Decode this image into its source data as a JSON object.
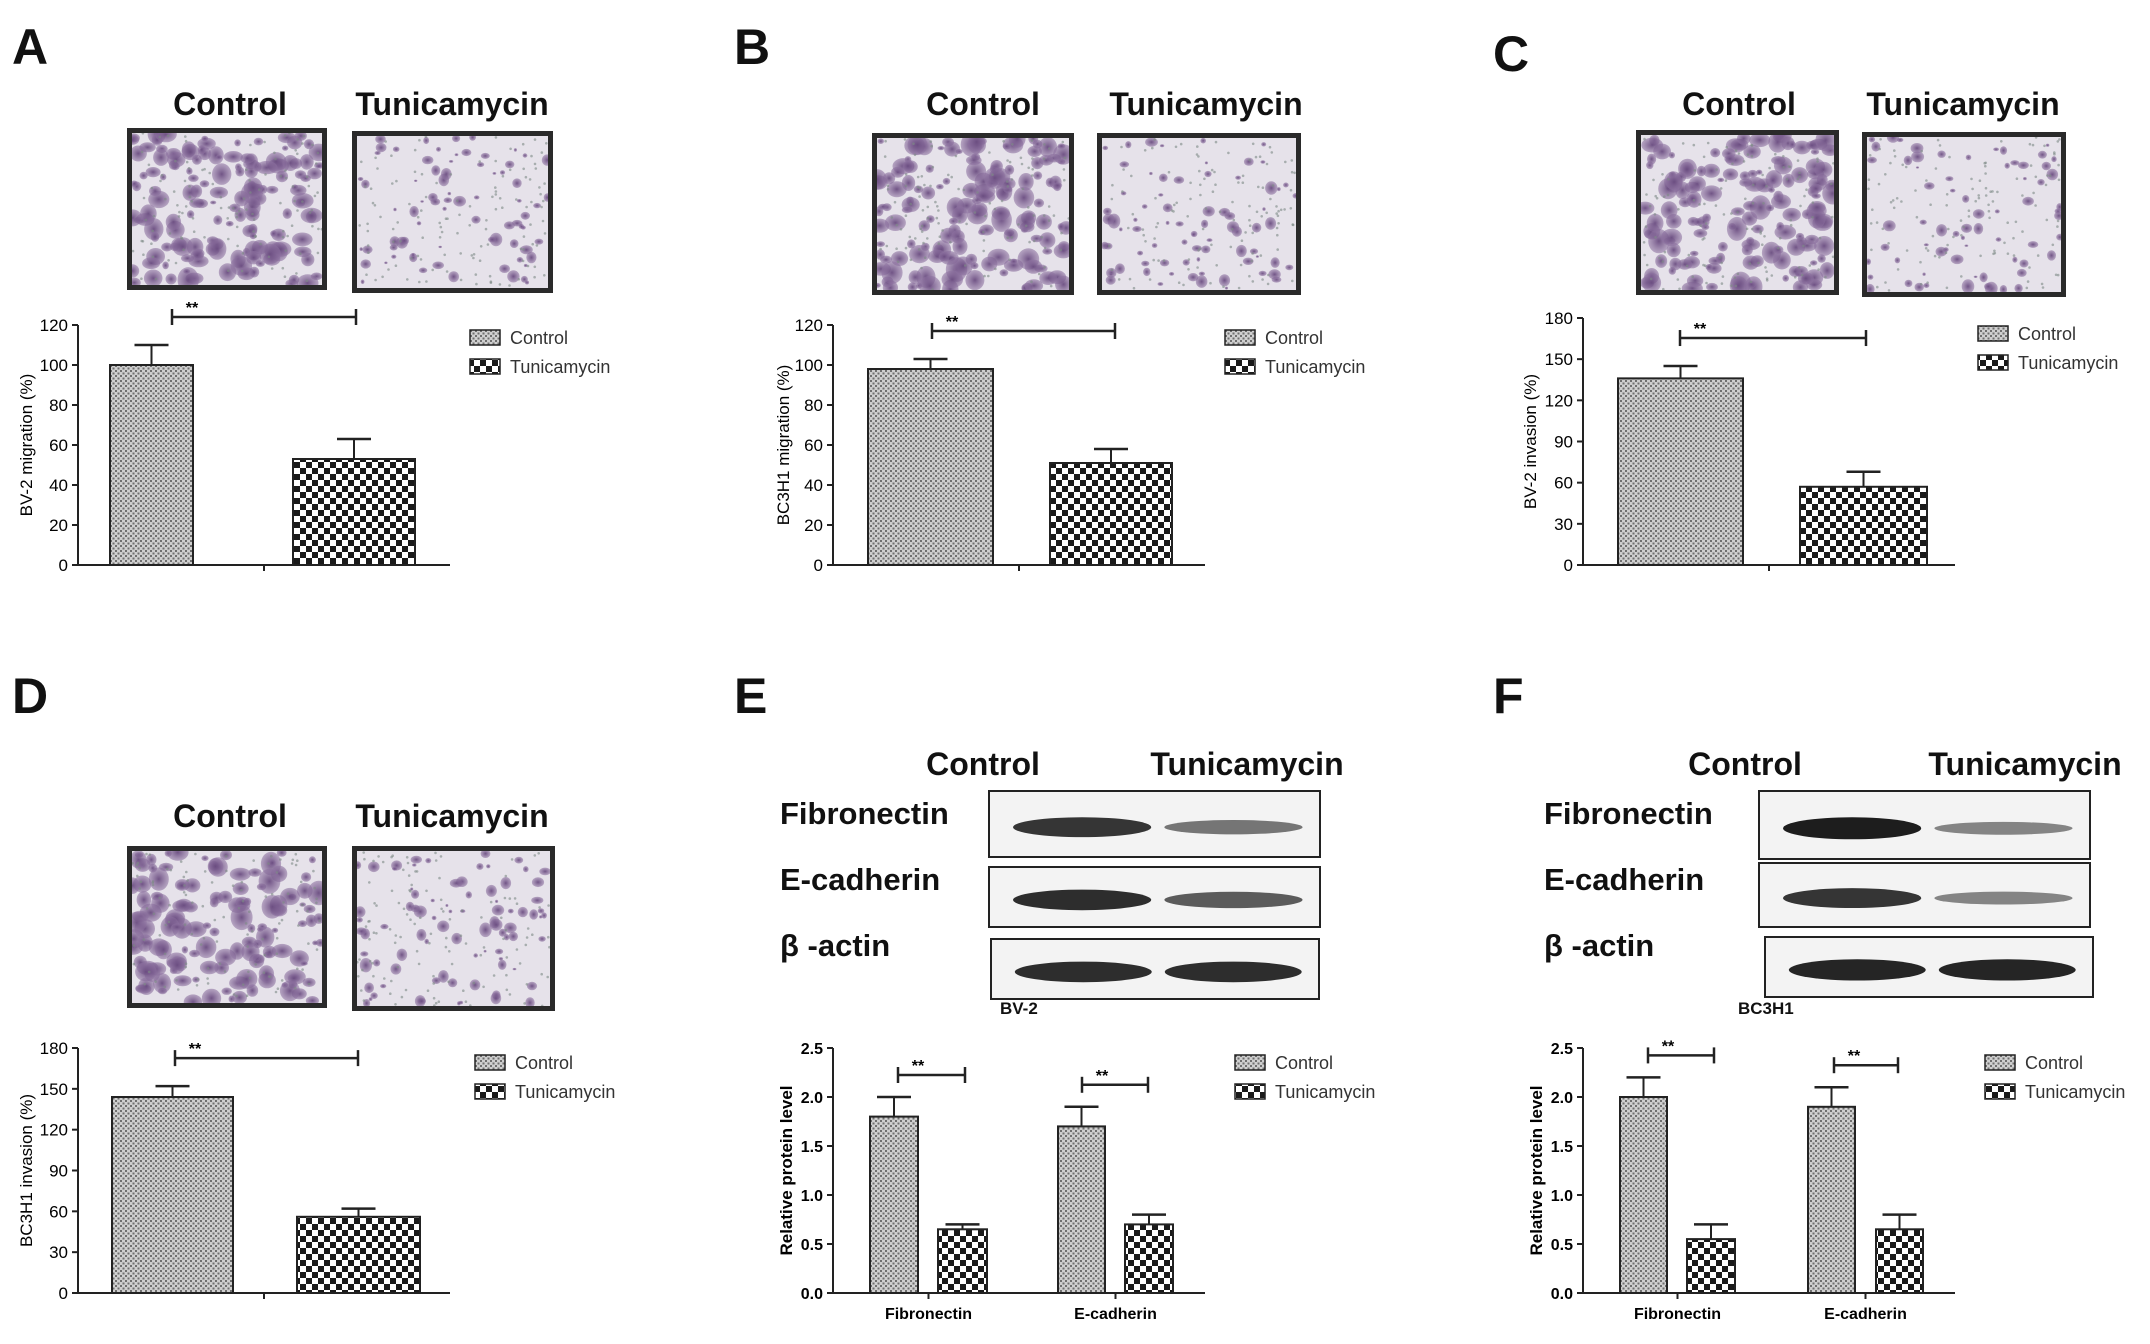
{
  "colors": {
    "control_bar": "#8a8a8a",
    "tunicamycin_bar": "#1a1a1a",
    "stain": "#7a5a8c",
    "bg_cells": "#e6e2ea"
  },
  "legend": {
    "control": "Control",
    "tunicamycin": "Tunicamycin"
  },
  "image_headers": {
    "control": "Control",
    "tunicamycin": "Tunicamycin"
  },
  "sig_marker": "**",
  "panels": {
    "A": {
      "letter": "A"
    },
    "B": {
      "letter": "B"
    },
    "C": {
      "letter": "C"
    },
    "D": {
      "letter": "D"
    },
    "E": {
      "letter": "E",
      "cell_line": "BV-2"
    },
    "F": {
      "letter": "F",
      "cell_line": "BC3H1"
    }
  },
  "blot_labels": [
    "Fibronectin",
    "E-cadherin",
    "β -actin"
  ],
  "chart_data": [
    {
      "panel": "A",
      "type": "bar",
      "ylabel": "BV-2 migration (%)",
      "ylim": [
        0,
        120
      ],
      "yticks": [
        0,
        20,
        40,
        60,
        80,
        100,
        120
      ],
      "categories": [
        ""
      ],
      "series": [
        {
          "name": "Control",
          "values": [
            100
          ],
          "errors": [
            10
          ]
        },
        {
          "name": "Tunicamycin",
          "values": [
            53
          ],
          "errors": [
            10
          ]
        }
      ],
      "annotations": [
        "**"
      ],
      "legend_position": "right"
    },
    {
      "panel": "B",
      "type": "bar",
      "ylabel": "BC3H1 migration (%)",
      "ylim": [
        0,
        120
      ],
      "yticks": [
        0,
        20,
        40,
        60,
        80,
        100,
        120
      ],
      "categories": [
        ""
      ],
      "series": [
        {
          "name": "Control",
          "values": [
            98
          ],
          "errors": [
            5
          ]
        },
        {
          "name": "Tunicamycin",
          "values": [
            51
          ],
          "errors": [
            7
          ]
        }
      ],
      "annotations": [
        "**"
      ],
      "legend_position": "right"
    },
    {
      "panel": "C",
      "type": "bar",
      "ylabel": "BV-2 invasion (%)",
      "ylim": [
        0,
        180
      ],
      "yticks": [
        0,
        30,
        60,
        90,
        120,
        150,
        180
      ],
      "categories": [
        ""
      ],
      "series": [
        {
          "name": "Control",
          "values": [
            136
          ],
          "errors": [
            9
          ]
        },
        {
          "name": "Tunicamycin",
          "values": [
            57
          ],
          "errors": [
            11
          ]
        }
      ],
      "annotations": [
        "**"
      ],
      "legend_position": "right"
    },
    {
      "panel": "D",
      "type": "bar",
      "ylabel": "BC3H1 invasion (%)",
      "ylim": [
        0,
        180
      ],
      "yticks": [
        0,
        30,
        60,
        90,
        120,
        150,
        180
      ],
      "categories": [
        ""
      ],
      "series": [
        {
          "name": "Control",
          "values": [
            144
          ],
          "errors": [
            8
          ]
        },
        {
          "name": "Tunicamycin",
          "values": [
            56
          ],
          "errors": [
            6
          ]
        }
      ],
      "annotations": [
        "**"
      ],
      "legend_position": "right"
    },
    {
      "panel": "E",
      "type": "bar",
      "ylabel": "Relative protein level",
      "ylim": [
        0,
        2.5
      ],
      "yticks": [
        "0.0",
        "0.5",
        "1.0",
        "1.5",
        "2.0",
        "2.5"
      ],
      "categories": [
        "Fibronectin",
        "E-cadherin"
      ],
      "series": [
        {
          "name": "Control",
          "values": [
            1.8,
            1.7
          ],
          "errors": [
            0.2,
            0.2
          ]
        },
        {
          "name": "Tunicamycin",
          "values": [
            0.65,
            0.7
          ],
          "errors": [
            0.05,
            0.1
          ]
        }
      ],
      "annotations": [
        "**",
        "**"
      ],
      "legend_position": "right"
    },
    {
      "panel": "F",
      "type": "bar",
      "ylabel": "Relative protein level",
      "ylim": [
        0,
        2.5
      ],
      "yticks": [
        "0.0",
        "0.5",
        "1.0",
        "1.5",
        "2.0",
        "2.5"
      ],
      "categories": [
        "Fibronectin",
        "E-cadherin"
      ],
      "series": [
        {
          "name": "Control",
          "values": [
            2.0,
            1.9
          ],
          "errors": [
            0.2,
            0.2
          ]
        },
        {
          "name": "Tunicamycin",
          "values": [
            0.55,
            0.65
          ],
          "errors": [
            0.15,
            0.15
          ]
        }
      ],
      "annotations": [
        "**",
        "**"
      ],
      "legend_position": "right"
    }
  ]
}
